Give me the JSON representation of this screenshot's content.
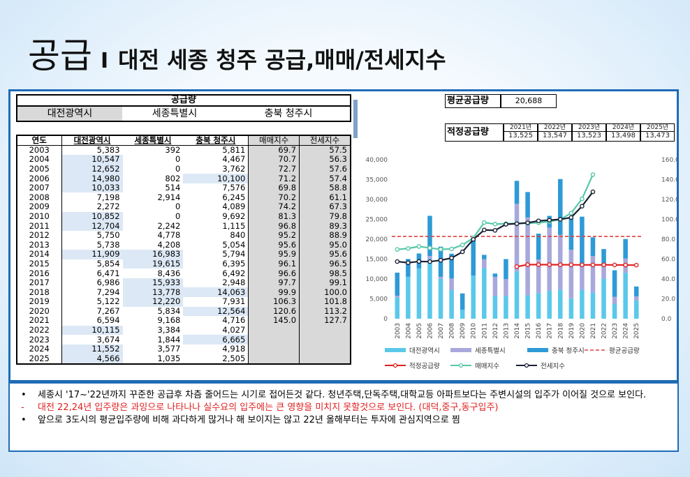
{
  "title": {
    "main": "공급",
    "sep": "I",
    "sub": "대전 세종 청주 공급,매매/전세지수"
  },
  "table": {
    "header_top": "공급량",
    "regions": [
      "대전광역시",
      "세종특별시",
      "충북 청주시"
    ],
    "columns": [
      "연도",
      "대전광역시",
      "세종특별시",
      "충북 청주시",
      "매매지수",
      "전세지수"
    ],
    "rows": [
      [
        "2003",
        "5,383",
        "392",
        "5,811",
        "69.7",
        "57.5"
      ],
      [
        "2004",
        "10,547",
        "0",
        "4,467",
        "70.7",
        "56.3"
      ],
      [
        "2005",
        "12,652",
        "0",
        "3,762",
        "72.7",
        "57.6"
      ],
      [
        "2006",
        "14,980",
        "802",
        "10,100",
        "71.2",
        "57.4"
      ],
      [
        "2007",
        "10,033",
        "514",
        "7,576",
        "69.8",
        "58.8"
      ],
      [
        "2008",
        "7,198",
        "2,914",
        "6,245",
        "70.2",
        "61.1"
      ],
      [
        "2009",
        "2,272",
        "0",
        "4,089",
        "74.2",
        "67.3"
      ],
      [
        "2010",
        "10,852",
        "0",
        "9,692",
        "81.3",
        "79.8"
      ],
      [
        "2011",
        "12,704",
        "2,242",
        "1,115",
        "96.8",
        "89.3"
      ],
      [
        "2012",
        "5,750",
        "4,778",
        "840",
        "95.2",
        "88.9"
      ],
      [
        "2013",
        "5,738",
        "4,208",
        "5,054",
        "95.6",
        "95.0"
      ],
      [
        "2014",
        "11,909",
        "16,983",
        "5,794",
        "95.9",
        "95.6"
      ],
      [
        "2015",
        "5,854",
        "19,615",
        "6,395",
        "96.1",
        "96.5"
      ],
      [
        "2016",
        "6,471",
        "8,436",
        "6,492",
        "96.6",
        "98.5"
      ],
      [
        "2017",
        "6,986",
        "15,933",
        "2,948",
        "97.7",
        "99.1"
      ],
      [
        "2018",
        "7,294",
        "13,778",
        "14,063",
        "99.9",
        "100.0"
      ],
      [
        "2019",
        "5,122",
        "12,220",
        "7,931",
        "106.3",
        "101.8"
      ],
      [
        "2020",
        "7,267",
        "5,834",
        "12,564",
        "120.6",
        "113.2"
      ],
      [
        "2021",
        "6,594",
        "9,168",
        "4,716",
        "145.0",
        "127.7"
      ],
      [
        "2022",
        "10,115",
        "3,384",
        "4,027",
        "",
        ""
      ],
      [
        "2023",
        "3,674",
        "1,844",
        "6,665",
        "",
        ""
      ],
      [
        "2024",
        "11,552",
        "3,577",
        "4,918",
        "",
        ""
      ],
      [
        "2025",
        "4,566",
        "1,035",
        "2,505",
        "",
        ""
      ]
    ]
  },
  "avg_supply": {
    "label": "평균공급량",
    "value": "20,688"
  },
  "proper_supply": {
    "label": "적정공급량",
    "years": [
      "2021년",
      "2022년",
      "2023년",
      "2024년",
      "2025년"
    ],
    "values": [
      "13,525",
      "13,547",
      "13,523",
      "13,498",
      "13,473"
    ]
  },
  "chart_data": {
    "type": "bar",
    "categories": [
      "2003",
      "2004",
      "2005",
      "2006",
      "2007",
      "2008",
      "2009",
      "2010",
      "2011",
      "2012",
      "2013",
      "2014",
      "2015",
      "2016",
      "2017",
      "2018",
      "2019",
      "2020",
      "2021",
      "2022",
      "2023",
      "2024",
      "2025"
    ],
    "y_left_ticks": [
      "0",
      "5,000",
      "10,000",
      "15,000",
      "20,000",
      "25,000",
      "30,000",
      "35,000",
      "40,000"
    ],
    "y_right_ticks": [
      "0.0",
      "20.0",
      "40.0",
      "60.0",
      "80.0",
      "100.0",
      "120.0",
      "140.0",
      "160.0"
    ],
    "ylim_left": [
      0,
      40000
    ],
    "ylim_right": [
      0,
      160
    ],
    "stacked_series": [
      {
        "name": "대전광역시",
        "color": "#5bc8ea",
        "values": [
          5383,
          10547,
          12652,
          14980,
          10033,
          7198,
          2272,
          10852,
          12704,
          5750,
          5738,
          11909,
          5854,
          6471,
          6986,
          7294,
          5122,
          7267,
          6594,
          10115,
          3674,
          11552,
          4566
        ]
      },
      {
        "name": "세종특별시",
        "color": "#a9a8dc",
        "values": [
          392,
          0,
          0,
          802,
          514,
          2914,
          0,
          0,
          2242,
          4778,
          4208,
          16983,
          19615,
          8436,
          15933,
          13778,
          12220,
          5834,
          9168,
          3384,
          1844,
          3577,
          1035
        ]
      },
      {
        "name": "충북 청주시",
        "color": "#2e9ad6",
        "values": [
          5811,
          4467,
          3762,
          10100,
          7576,
          6245,
          4089,
          9692,
          1115,
          840,
          5054,
          5794,
          6395,
          6492,
          2948,
          14063,
          7931,
          12564,
          4716,
          4027,
          6665,
          4918,
          2505
        ]
      }
    ],
    "line_series": [
      {
        "name": "평균공급량",
        "color": "#e04040",
        "style": "dashed",
        "axis": "left",
        "constant": 20688
      },
      {
        "name": "적정공급량",
        "color": "#e02020",
        "style": "marker",
        "axis": "left",
        "values": [
          null,
          null,
          null,
          null,
          null,
          null,
          null,
          null,
          null,
          null,
          null,
          13100,
          13600,
          13600,
          13600,
          13580,
          13560,
          13540,
          13525,
          13547,
          13523,
          13498,
          13473
        ]
      },
      {
        "name": "매매지수",
        "color": "#56c8a8",
        "style": "marker",
        "axis": "right",
        "values": [
          69.7,
          70.7,
          72.7,
          71.2,
          69.8,
          70.2,
          74.2,
          81.3,
          96.8,
          95.2,
          95.6,
          95.9,
          96.1,
          96.6,
          97.7,
          99.9,
          106.3,
          120.6,
          145.0,
          null,
          null,
          null,
          null
        ]
      },
      {
        "name": "전세지수",
        "color": "#1a2035",
        "style": "marker",
        "axis": "right",
        "values": [
          57.5,
          56.3,
          57.6,
          57.4,
          58.8,
          61.1,
          67.3,
          79.8,
          89.3,
          88.9,
          95.0,
          95.6,
          96.5,
          98.5,
          99.1,
          100.0,
          101.8,
          113.2,
          127.7,
          null,
          null,
          null,
          null
        ]
      }
    ],
    "legend": [
      "대전광역시",
      "세종특별시",
      "충북 청주시",
      "평균공급량",
      "적정공급량",
      "매매지수",
      "전세지수"
    ]
  },
  "notes": [
    {
      "bullet": "•",
      "text": "세종시 '17~'22년까지 꾸준한 공급후 차츰 줄어드는 시기로 접어든것 같다. 청년주택,단독주택,대학교등 아파트보다는 주변시설의 입주가 이어질 것으로 보인다.",
      "color": "#111111"
    },
    {
      "bullet": "-",
      "text": "대전 22,24년 입주량은 과잉으로 나타나나 실수요의 입주에는 큰 영향을 미치지 못할것으로 보인다. (대덕,중구,동구입주)",
      "color": "#e02020"
    },
    {
      "bullet": "•",
      "text": "앞으로 3도시의 평균입주량에 비해 과다하게 많거나 해 보이지는 않고 22년 올해부터는 투자에 관심지역으로 찜",
      "color": "#111111"
    }
  ]
}
